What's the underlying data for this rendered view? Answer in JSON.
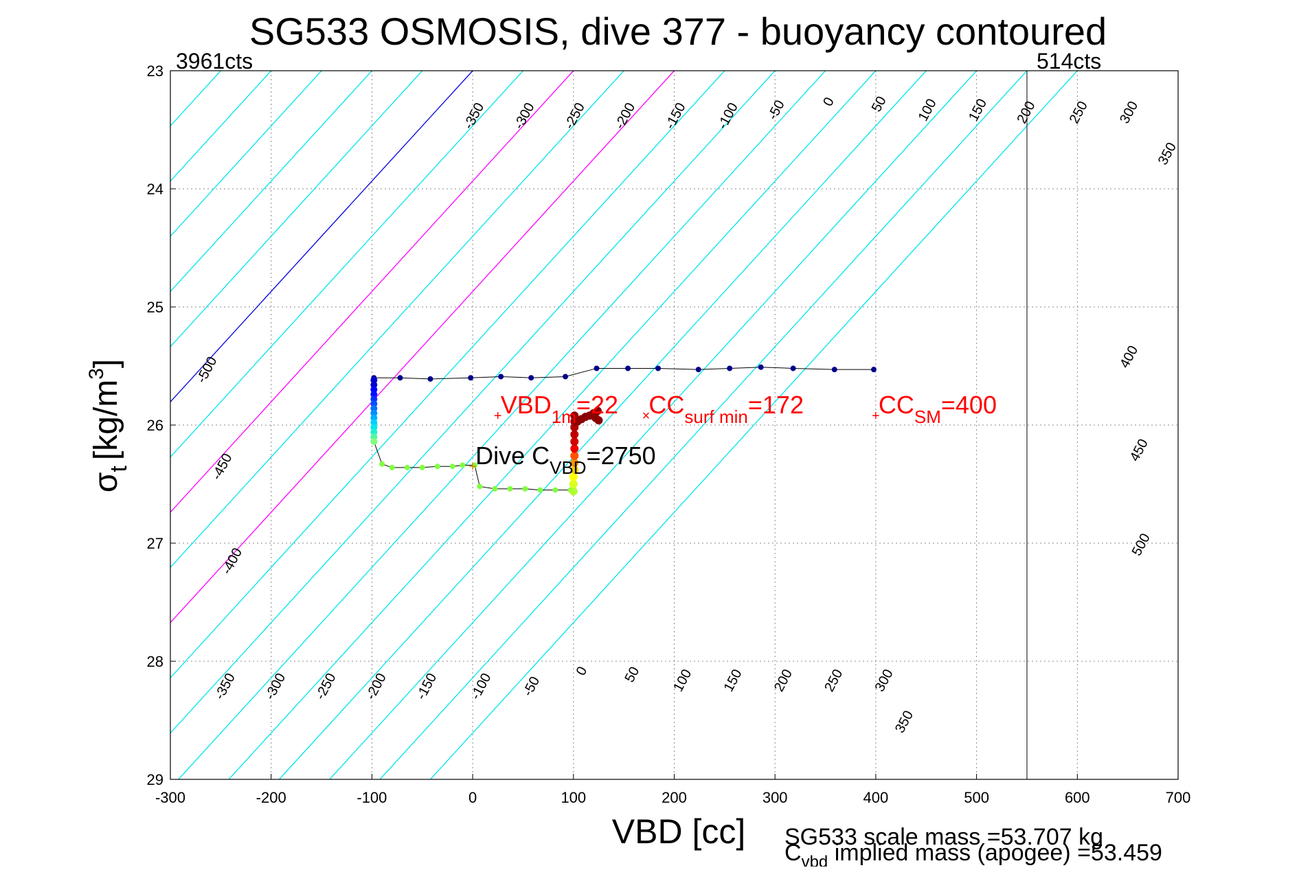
{
  "chart_data": {
    "type": "scatter",
    "title": "SG533 OSMOSIS, dive 377 - buoyancy contoured",
    "xlabel": "VBD [cc]",
    "ylabel_main": "σ",
    "ylabel_sub": "t",
    "ylabel_units": "[kg/m",
    "ylabel_sup": "3",
    "ylabel_close": "]",
    "xlim": [
      -300,
      700
    ],
    "ylim": [
      29,
      23
    ],
    "xticks": [
      "-300",
      "-200",
      "-100",
      "0",
      "100",
      "200",
      "300",
      "400",
      "500",
      "600",
      "700"
    ],
    "yticks": [
      "23",
      "24",
      "25",
      "26",
      "27",
      "28",
      "29"
    ],
    "grid": true,
    "top_left_label": "3961cts",
    "top_right_label": "514cts",
    "vertical_limit_x": 550,
    "contour_slope_cc_per_kgm3": -107,
    "contour_values": [
      -550,
      -500,
      -450,
      -400,
      -350,
      -300,
      -250,
      -200,
      -150,
      -100,
      -50,
      0,
      50,
      100,
      150,
      200,
      250,
      300,
      350,
      400,
      450,
      500,
      550,
      600
    ],
    "contour_colors": {
      "default": "#00e5ee",
      "zero": "#0000dd",
      "positive_bounds": "#ff00ff"
    },
    "magenta_contours": [
      100,
      200
    ],
    "blue_contour": 0,
    "contour_label_text": [
      {
        "text": "-350",
        "x": 5,
        "y": 23.4
      },
      {
        "text": "-300",
        "x": 55,
        "y": 23.4
      },
      {
        "text": "-250",
        "x": 105,
        "y": 23.4
      },
      {
        "text": "-200",
        "x": 155,
        "y": 23.4
      },
      {
        "text": "-150",
        "x": 205,
        "y": 23.4
      },
      {
        "text": "-100",
        "x": 257,
        "y": 23.4
      },
      {
        "text": "-50",
        "x": 305,
        "y": 23.35
      },
      {
        "text": "0",
        "x": 357,
        "y": 23.28
      },
      {
        "text": "50",
        "x": 407,
        "y": 23.3
      },
      {
        "text": "100",
        "x": 455,
        "y": 23.35
      },
      {
        "text": "150",
        "x": 505,
        "y": 23.35
      },
      {
        "text": "200",
        "x": 553,
        "y": 23.37
      },
      {
        "text": "250",
        "x": 605,
        "y": 23.37
      },
      {
        "text": "300",
        "x": 655,
        "y": 23.37
      },
      {
        "text": "350",
        "x": 693,
        "y": 23.72
      },
      {
        "text": "-500",
        "x": -260,
        "y": 25.55
      },
      {
        "text": "-450",
        "x": -245,
        "y": 26.37
      },
      {
        "text": "-400",
        "x": -235,
        "y": 27.17
      },
      {
        "text": "400",
        "x": 655,
        "y": 25.44
      },
      {
        "text": "450",
        "x": 665,
        "y": 26.23
      },
      {
        "text": "500",
        "x": 667,
        "y": 27.03
      },
      {
        "text": "-350",
        "x": -242,
        "y": 28.23
      },
      {
        "text": "-300",
        "x": -192,
        "y": 28.23
      },
      {
        "text": "-250",
        "x": -142,
        "y": 28.23
      },
      {
        "text": "-200",
        "x": -92,
        "y": 28.23
      },
      {
        "text": "-150",
        "x": -42,
        "y": 28.23
      },
      {
        "text": "-100",
        "x": 12,
        "y": 28.23
      },
      {
        "text": "-50",
        "x": 62,
        "y": 28.23
      },
      {
        "text": "0",
        "x": 112,
        "y": 28.1
      },
      {
        "text": "50",
        "x": 162,
        "y": 28.13
      },
      {
        "text": "100",
        "x": 212,
        "y": 28.18
      },
      {
        "text": "150",
        "x": 262,
        "y": 28.18
      },
      {
        "text": "200",
        "x": 312,
        "y": 28.18
      },
      {
        "text": "250",
        "x": 362,
        "y": 28.18
      },
      {
        "text": "300",
        "x": 412,
        "y": 28.18
      },
      {
        "text": "350",
        "x": 432,
        "y": 28.53
      }
    ],
    "upper_path": {
      "x": [
        -98,
        -72,
        -42,
        -2,
        28,
        58,
        92,
        123,
        154,
        184,
        224,
        255,
        286,
        318,
        359,
        398
      ],
      "y": [
        25.6,
        25.6,
        25.61,
        25.6,
        25.59,
        25.6,
        25.59,
        25.52,
        25.52,
        25.52,
        25.53,
        25.52,
        25.51,
        25.52,
        25.53,
        25.53
      ],
      "color": "#00008b"
    },
    "descent_column": {
      "x": [
        -98,
        -98,
        -98,
        -98,
        -98,
        -98,
        -98,
        -98,
        -98,
        -98,
        -98,
        -98,
        -98,
        -98
      ],
      "y": [
        25.62,
        25.66,
        25.7,
        25.74,
        25.78,
        25.82,
        25.86,
        25.9,
        25.94,
        25.98,
        26.02,
        26.06,
        26.1,
        26.14
      ],
      "colors": [
        "#0000cd",
        "#0000cd",
        "#0000ff",
        "#0010ff",
        "#0030ff",
        "#0050ff",
        "#0070ff",
        "#0090ff",
        "#00b0ff",
        "#00d0ff",
        "#00e8f0",
        "#20f0d0",
        "#50f8a0",
        "#80ff80"
      ]
    },
    "lower_shelf_1": {
      "x": [
        -90,
        -80,
        -65,
        -50,
        -35,
        -20,
        -10,
        2
      ],
      "y": [
        26.33,
        26.36,
        26.36,
        26.36,
        26.35,
        26.35,
        26.34,
        26.34
      ],
      "color": "#80ff40"
    },
    "lower_shelf_2": {
      "x": [
        7,
        22,
        37,
        52,
        67,
        82,
        97
      ],
      "y": [
        26.52,
        26.54,
        26.54,
        26.54,
        26.55,
        26.55,
        26.55
      ],
      "color": "#80ff40"
    },
    "ascent_column": {
      "x": [
        100,
        100,
        100,
        101,
        101,
        101,
        101,
        101,
        101,
        101,
        101,
        101
      ],
      "y": [
        26.56,
        26.5,
        26.44,
        26.38,
        26.32,
        26.26,
        26.2,
        26.14,
        26.08,
        26.02,
        25.97,
        25.92
      ],
      "colors": [
        "#b0ff30",
        "#d8ff20",
        "#ffff00",
        "#ffd000",
        "#ff9000",
        "#ff5000",
        "#ee0000",
        "#d00000",
        "#c00000",
        "#b00000",
        "#a00000",
        "#900000"
      ]
    },
    "surface_cluster": {
      "x": [
        104,
        108,
        112,
        116,
        120,
        124,
        125,
        122
      ],
      "y": [
        25.97,
        25.95,
        25.93,
        25.92,
        25.9,
        25.88,
        25.96,
        25.94
      ],
      "color": "#8b0000"
    },
    "annotations": [
      {
        "text": "VBD",
        "sub": "1m",
        "after": "=22",
        "x": 25,
        "y": 25.92,
        "color": "#ff0000",
        "marker": "+"
      },
      {
        "text": "CC",
        "sub": "surf min",
        "after": "=172",
        "x": 172,
        "y": 25.92,
        "color": "#ff0000",
        "marker": "×"
      },
      {
        "text": "CC",
        "sub": "SM",
        "after": "=400",
        "x": 400,
        "y": 25.92,
        "color": "#ff0000",
        "marker": "+"
      },
      {
        "text": "Dive C",
        "sub": "VBD",
        "after": "=2750",
        "x": 0,
        "y": 26.35,
        "color": "#000000",
        "marker": "+"
      }
    ],
    "footer_line1": "SG533 scale mass =53.707 kg",
    "footer_line2_main": "C",
    "footer_line2_sub": "vbd",
    "footer_line2_rest": " implied mass (apogee) =53.459"
  }
}
